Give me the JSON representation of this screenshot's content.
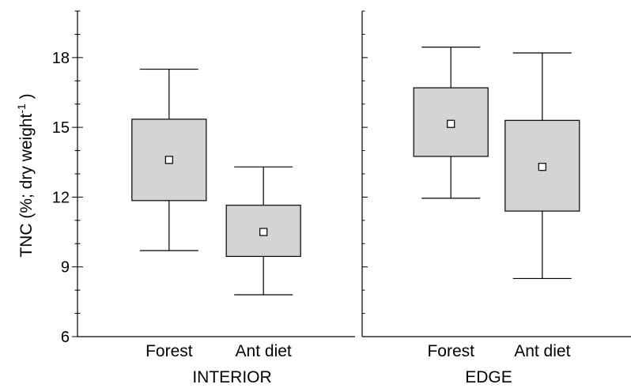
{
  "chart_data": {
    "type": "box",
    "ylabel": "TNC (%; dry weight",
    "ylabel_sup": "-1",
    "ylabel_close": ")",
    "ylim": [
      6,
      20
    ],
    "yticks": [
      6,
      9,
      12,
      15,
      18
    ],
    "grid": false,
    "panels": [
      {
        "name": "INTERIOR",
        "categories": [
          "Forest",
          "Ant diet"
        ],
        "boxes": [
          {
            "category": "Forest",
            "whisker_low": 9.7,
            "q1": 11.85,
            "median": 13.6,
            "q3": 15.35,
            "whisker_high": 17.5
          },
          {
            "category": "Ant diet",
            "whisker_low": 7.8,
            "q1": 9.45,
            "median": 10.5,
            "q3": 11.65,
            "whisker_high": 13.3
          }
        ]
      },
      {
        "name": "EDGE",
        "categories": [
          "Forest",
          "Ant diet"
        ],
        "boxes": [
          {
            "category": "Forest",
            "whisker_low": 11.95,
            "q1": 13.75,
            "median": 15.15,
            "q3": 16.7,
            "whisker_high": 18.45
          },
          {
            "category": "Ant diet",
            "whisker_low": 8.5,
            "q1": 11.4,
            "median": 13.3,
            "q3": 15.3,
            "whisker_high": 18.2
          }
        ]
      }
    ]
  }
}
